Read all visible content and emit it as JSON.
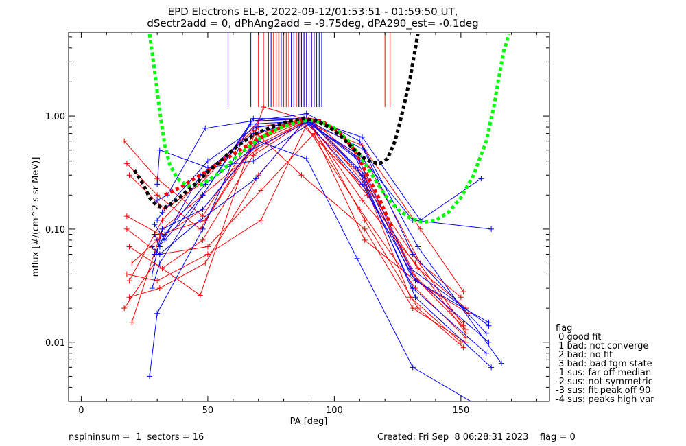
{
  "chart_data": {
    "type": "scatter",
    "title": "EPD Electrons EL-B, 2022-09-12/01:53:51 - 01:59:50 UT,",
    "subtitle": "dSectr2add = 0, dPhAng2add = -9.75deg, dPA290_est=  -0.1deg",
    "xlabel": "PA [deg]",
    "ylabel": "mflux [#/(cm^2 s sr MeV)]",
    "xlim": [
      -5,
      185
    ],
    "ylim": [
      0.003,
      5.5
    ],
    "yscale": "log",
    "xticks": [
      0,
      50,
      100,
      150
    ],
    "xtick_labels": [
      "0",
      "50",
      "100",
      "150"
    ],
    "yticks": [
      0.01,
      0.1,
      1.0
    ],
    "ytick_labels": [
      "0.01",
      "0.10",
      "1.00"
    ],
    "colors": {
      "red": "#ff0000",
      "blue": "#0000ff",
      "green": "#00ff00",
      "black": "#000000"
    },
    "series": [
      {
        "color": "red",
        "style": "crossed-lines",
        "lines": [
          {
            "x": [
              17,
              30,
              48,
              70,
              90,
              112,
              133,
              152
            ],
            "y": [
              0.6,
              0.28,
              0.13,
              0.8,
              0.95,
              0.3,
              0.035,
              0.013
            ]
          },
          {
            "x": [
              18,
              30,
              47,
              69,
              88,
              112,
              131,
              151
            ],
            "y": [
              0.38,
              0.2,
              0.1,
              0.6,
              0.9,
              0.28,
              0.04,
              0.015
            ]
          },
          {
            "x": [
              18,
              31,
              49,
              70,
              89,
              111,
              132,
              152
            ],
            "y": [
              0.13,
              0.09,
              0.12,
              0.7,
              0.92,
              0.18,
              0.05,
              0.012
            ]
          },
          {
            "x": [
              19,
              32,
              48,
              68,
              87,
              113,
              130,
              150
            ],
            "y": [
              0.07,
              0.045,
              0.08,
              0.45,
              0.85,
              0.22,
              0.025,
              0.01
            ]
          },
          {
            "x": [
              18,
              30,
              50,
              71,
              90,
              112,
              133,
              151
            ],
            "y": [
              0.04,
              0.035,
              0.06,
              0.12,
              0.92,
              0.12,
              0.02,
              0.009
            ]
          },
          {
            "x": [
              19,
              31,
              49,
              70,
              88,
              110,
              132,
              152
            ],
            "y": [
              0.025,
              0.03,
              0.05,
              0.3,
              0.88,
              0.15,
              0.03,
              0.011
            ]
          },
          {
            "x": [
              17,
              29,
              47,
              72,
              91,
              112,
              131,
              151
            ],
            "y": [
              0.02,
              0.05,
              0.026,
              1.2,
              0.9,
              0.25,
              0.06,
              0.014
            ]
          },
          {
            "x": [
              20,
              32,
              48,
              69,
              89,
              113,
              133,
              152
            ],
            "y": [
              0.015,
              0.1,
              0.2,
              0.5,
              0.93,
              0.2,
              0.045,
              0.02
            ]
          },
          {
            "x": [
              19,
              33,
              47,
              70,
              90,
              114,
              134,
              150
            ],
            "y": [
              0.3,
              0.15,
              0.25,
              0.9,
              0.95,
              0.35,
              0.05,
              0.025
            ]
          },
          {
            "x": [
              18,
              31,
              50,
              71,
              92,
              112,
              132,
              153
            ],
            "y": [
              0.1,
              0.06,
              0.07,
              0.22,
              0.7,
              0.08,
              0.035,
              0.018
            ]
          },
          {
            "x": [
              20,
              30,
              48,
              69,
              88,
              111,
              134,
              151
            ],
            "y": [
              0.05,
              0.08,
              0.15,
              0.55,
              0.88,
              0.55,
              0.1,
              0.028
            ]
          },
          {
            "x": [
              19,
              32,
              49,
              68,
              87,
              112,
              131,
              152
            ],
            "y": [
              0.035,
              0.12,
              0.3,
              0.75,
              0.3,
              0.1,
              0.02,
              0.01
            ]
          }
        ]
      },
      {
        "color": "blue",
        "style": "crossed-lines",
        "lines": [
          {
            "x": [
              27,
              30,
              48,
              67,
              89,
              110,
              131,
              160
            ],
            "y": [
              0.005,
              0.018,
              0.1,
              0.9,
              1.05,
              0.6,
              0.06,
              0.012
            ]
          },
          {
            "x": [
              28,
              31,
              48,
              68,
              88,
              108,
              130,
              161
            ],
            "y": [
              0.03,
              0.05,
              0.2,
              0.95,
              0.95,
              0.45,
              0.04,
              0.01
            ]
          },
          {
            "x": [
              29,
              33,
              49,
              67,
              90,
              109,
              131,
              160
            ],
            "y": [
              0.06,
              0.09,
              0.25,
              0.5,
              0.9,
              0.35,
              0.03,
              0.008
            ]
          },
          {
            "x": [
              30,
              32,
              50,
              69,
              91,
              111,
              132,
              162
            ],
            "y": [
              0.12,
              0.14,
              0.4,
              0.8,
              0.88,
              0.3,
              0.025,
              0.006
            ]
          },
          {
            "x": [
              29,
              31,
              47,
              68,
              89,
              110,
              130,
              161
            ],
            "y": [
              0.09,
              0.07,
              0.3,
              0.7,
              0.92,
              0.4,
              0.045,
              0.014
            ]
          },
          {
            "x": [
              30,
              34,
              49,
              67,
              88,
              112,
              133,
              166
            ],
            "y": [
              0.18,
              0.2,
              0.78,
              0.9,
              0.95,
              0.5,
              0.07,
              0.0065
            ]
          },
          {
            "x": [
              28,
              32,
              48,
              70,
              89,
              109,
              131,
              160
            ],
            "y": [
              0.04,
              0.1,
              0.15,
              0.6,
              0.42,
              0.055,
              0.006,
              0.0025
            ]
          },
          {
            "x": [
              30,
              31,
              50,
              68,
              90,
              111,
              132,
              161
            ],
            "y": [
              0.25,
              0.5,
              0.35,
              0.4,
              0.85,
              0.25,
              0.035,
              0.015
            ]
          },
          {
            "x": [
              29,
              33,
              48,
              67,
              88,
              110,
              131,
              162
            ],
            "y": [
              0.11,
              0.08,
              0.2,
              0.85,
              0.9,
              0.45,
              0.12,
              0.1
            ]
          },
          {
            "x": [
              28,
              31,
              47,
              69,
              89,
              111,
              134,
              158
            ],
            "y": [
              0.07,
              0.06,
              0.12,
              0.28,
              0.95,
              0.65,
              0.12,
              0.28
            ]
          }
        ]
      },
      {
        "color": "red",
        "style": "thick-dashed",
        "x": [
          33,
          40,
          50,
          60,
          70,
          80,
          88,
          95,
          102,
          108,
          113,
          118,
          123
        ],
        "y": [
          0.2,
          0.24,
          0.33,
          0.46,
          0.63,
          0.82,
          0.94,
          0.9,
          0.72,
          0.5,
          0.3,
          0.18,
          0.1
        ]
      },
      {
        "color": "green",
        "style": "thick-dashed",
        "x": [
          27,
          29,
          31,
          33,
          35,
          38,
          42,
          48,
          55,
          62,
          70,
          78,
          85,
          90,
          95,
          100,
          105,
          110,
          115,
          120,
          125,
          130,
          135,
          140,
          145,
          150,
          155,
          160,
          163,
          165,
          167,
          169
        ],
        "y": [
          5.3,
          2.5,
          1.1,
          0.55,
          0.37,
          0.28,
          0.24,
          0.25,
          0.32,
          0.45,
          0.62,
          0.78,
          0.88,
          0.92,
          0.88,
          0.78,
          0.62,
          0.45,
          0.3,
          0.2,
          0.15,
          0.125,
          0.115,
          0.12,
          0.14,
          0.19,
          0.3,
          0.6,
          1.2,
          2.2,
          3.8,
          5.3
        ]
      },
      {
        "color": "black",
        "style": "thick-dashed",
        "x": [
          21,
          24,
          27,
          30,
          33,
          36,
          40,
          45,
          50,
          56,
          62,
          68,
          75,
          82,
          88,
          93,
          98,
          103,
          108,
          112,
          115,
          118,
          121,
          124,
          127,
          130,
          133
        ],
        "y": [
          0.33,
          0.26,
          0.19,
          0.16,
          0.155,
          0.17,
          0.2,
          0.25,
          0.32,
          0.42,
          0.55,
          0.68,
          0.8,
          0.9,
          0.95,
          0.9,
          0.8,
          0.65,
          0.5,
          0.42,
          0.39,
          0.38,
          0.42,
          0.6,
          1.1,
          2.2,
          5.3
        ]
      }
    ],
    "tick_marks": {
      "ymin": 1.2,
      "ymax": 5.5,
      "red_x": [
        70,
        72,
        74,
        76,
        77,
        78,
        79,
        80,
        81,
        82,
        83,
        84,
        85,
        86,
        87,
        88,
        89,
        90,
        91,
        92,
        120,
        122
      ],
      "blue_x": [
        58,
        67,
        75,
        79,
        83,
        84,
        86,
        87,
        88,
        89,
        90,
        91,
        92,
        93,
        94,
        95
      ]
    },
    "legend": {
      "position": "bottom-right",
      "title": "flag",
      "entries": [
        " 0 good fit",
        " 1 bad: not converge",
        " 2 bad: no fit",
        " 3 bad: bad fgm state",
        "-1 sus: far off median",
        "-2 sus: not symmetric",
        "-3 sus: fit peak off 90",
        "-4 sus: peaks high var"
      ]
    },
    "grid": false
  },
  "footer": {
    "left": "nspininsum =  1  sectors = 16",
    "right": "Created: Fri Sep  8 06:28:31 2023    flag = 0"
  }
}
